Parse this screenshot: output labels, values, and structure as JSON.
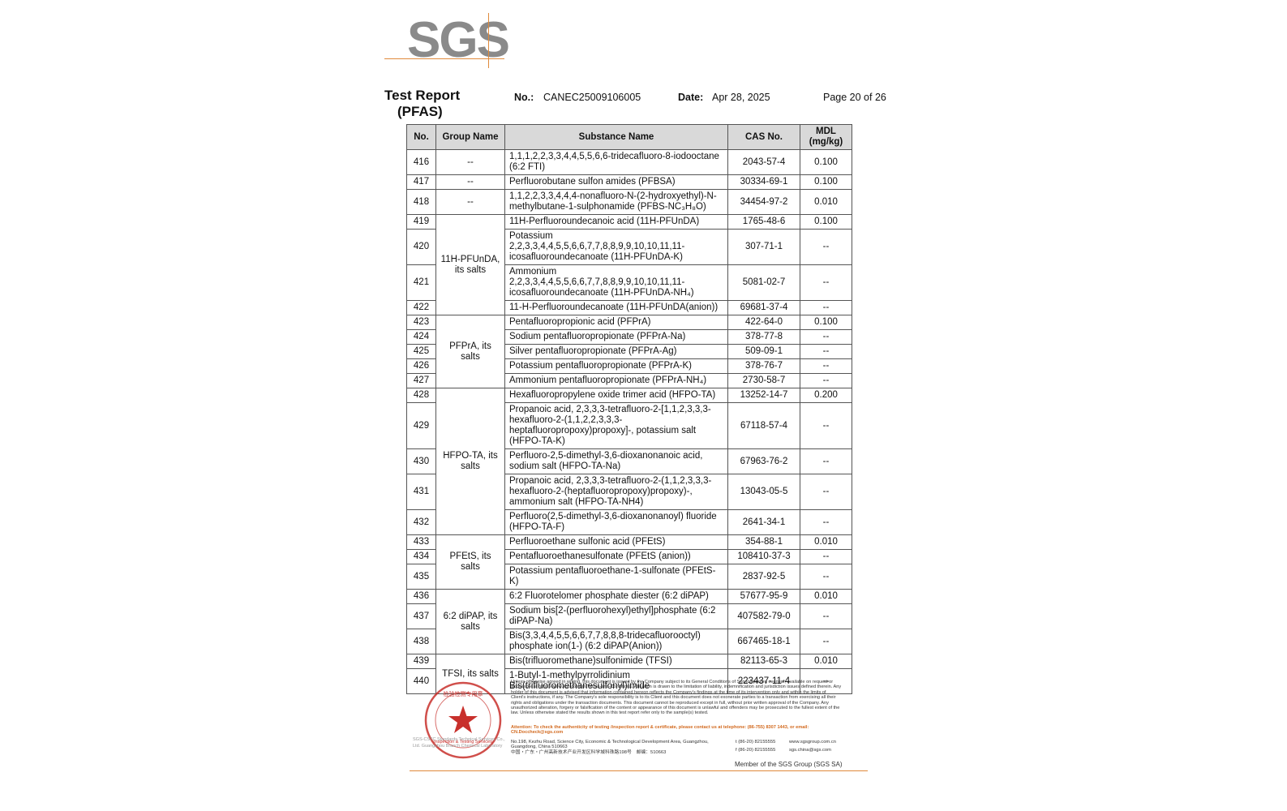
{
  "logo": "SGS",
  "header": {
    "title": "Test Report",
    "subtitle": "(PFAS)",
    "no_label": "No.:",
    "no": "CANEC25009106005",
    "date_label": "Date:",
    "date": "Apr 28, 2025",
    "page": "Page 20 of 26"
  },
  "table": {
    "columns": [
      "No.",
      "Group Name",
      "Substance Name",
      "CAS No.",
      "MDL (mg/kg)"
    ],
    "groups": [
      {
        "name": "--",
        "rows": [
          [
            "416",
            "1,1,1,2,2,3,3,4,4,5,5,6,6-tridecafluoro-8-iodooctane (6:2 FTI)",
            "2043-57-4",
            "0.100"
          ]
        ]
      },
      {
        "name": "--",
        "rows": [
          [
            "417",
            "Perfluorobutane sulfon amides (PFBSA)",
            "30334-69-1",
            "0.100"
          ]
        ]
      },
      {
        "name": "--",
        "rows": [
          [
            "418",
            "1,1,2,2,3,3,4,4,4-nonafluoro-N-(2-hydroxyethyl)-N-methylbutane-1-sulphonamide (PFBS-NC₃H₈O)",
            "34454-97-2",
            "0.010"
          ]
        ]
      },
      {
        "name": "11H-PFUnDA, its salts",
        "rows": [
          [
            "419",
            "11H-Perfluoroundecanoic acid (11H-PFUnDA)",
            "1765-48-6",
            "0.100"
          ],
          [
            "420",
            "Potassium 2,2,3,3,4,4,5,5,6,6,7,7,8,8,9,9,10,10,11,11-icosafluoroundecanoate (11H-PFUnDA-K)",
            "307-71-1",
            "--"
          ],
          [
            "421",
            "Ammonium 2,2,3,3,4,4,5,5,6,6,7,7,8,8,9,9,10,10,11,11-icosafluoroundecanoate (11H-PFUnDA-NH₄)",
            "5081-02-7",
            "--"
          ],
          [
            "422",
            "11-H-Perfluoroundecanoate (11H-PFUnDA(anion))",
            "69681-37-4",
            "--"
          ]
        ]
      },
      {
        "name": "PFPrA, its salts",
        "rows": [
          [
            "423",
            "Pentafluoropropionic acid (PFPrA)",
            "422-64-0",
            "0.100"
          ],
          [
            "424",
            "Sodium pentafluoropropionate (PFPrA-Na)",
            "378-77-8",
            "--"
          ],
          [
            "425",
            "Silver pentafluoropropionate (PFPrA-Ag)",
            "509-09-1",
            "--"
          ],
          [
            "426",
            "Potassium pentafluoropropionate (PFPrA-K)",
            "378-76-7",
            "--"
          ],
          [
            "427",
            "Ammonium pentafluoropropionate (PFPrA-NH₄)",
            "2730-58-7",
            "--"
          ]
        ]
      },
      {
        "name": "HFPO-TA, its salts",
        "rows": [
          [
            "428",
            "Hexafluoropropylene oxide trimer acid (HFPO-TA)",
            "13252-14-7",
            "0.200"
          ],
          [
            "429",
            "Propanoic acid, 2,3,3,3-tetrafluoro-2-[1,1,2,3,3,3-hexafluoro-2-(1,1,2,2,3,3,3-heptafluoropropoxy)propoxy]-, potassium salt (HFPO-TA-K)",
            "67118-57-4",
            "--"
          ],
          [
            "430",
            "Perfluoro-2,5-dimethyl-3,6-dioxanonanoic acid, sodium salt (HFPO-TA-Na)",
            "67963-76-2",
            "--"
          ],
          [
            "431",
            "Propanoic acid, 2,3,3,3-tetrafluoro-2-(1,1,2,3,3,3-hexafluoro-2-(heptafluoropropoxy)propoxy)-, ammonium salt (HFPO-TA-NH4)",
            "13043-05-5",
            "--"
          ],
          [
            "432",
            "Perfluoro(2,5-dimethyl-3,6-dioxanonanoyl) fluoride (HFPO-TA-F)",
            "2641-34-1",
            "--"
          ]
        ]
      },
      {
        "name": "PFEtS, its salts",
        "rows": [
          [
            "433",
            "Perfluoroethane sulfonic acid (PFEtS)",
            "354-88-1",
            "0.010"
          ],
          [
            "434",
            "Pentafluoroethanesulfonate (PFEtS (anion))",
            "108410-37-3",
            "--"
          ],
          [
            "435",
            "Potassium pentafluoroethane-1-sulfonate (PFEtS-K)",
            "2837-92-5",
            "--"
          ]
        ]
      },
      {
        "name": "6:2 diPAP, its salts",
        "rows": [
          [
            "436",
            "6:2 Fluorotelomer phosphate diester (6:2 diPAP)",
            "57677-95-9",
            "0.010"
          ],
          [
            "437",
            "Sodium bis[2-(perfluorohexyl)ethyl]phosphate (6:2 diPAP-Na)",
            "407582-79-0",
            "--"
          ],
          [
            "438",
            "Bis(3,3,4,4,5,5,6,6,7,7,8,8,8-tridecafluorooctyl) phosphate ion(1-) (6:2 diPAP(Anion))",
            "667465-18-1",
            "--"
          ]
        ]
      },
      {
        "name": "TFSI, its salts",
        "rows": [
          [
            "439",
            "Bis(trifluoromethane)sulfonimide (TFSI)",
            "82113-65-3",
            "0.010"
          ],
          [
            "440",
            "1-Butyl-1-methylpyrrolidinium Bis(trifluoromethanesulfonyl)imide",
            "223437-11-4",
            "--"
          ]
        ]
      }
    ]
  },
  "footer": {
    "stamp_top": "检验检测专用章",
    "stamp_bottom": "Inspection & Testing Services",
    "lab": "SGS-CSTC Standards Technical Services Co., Ltd. Guangzhou Branch Chemical Laboratory",
    "disclaimer": "Unless otherwise agreed in writing, this document is issued by the Company subject to its General Conditions of Service printed overleaf, available on request or accessible at https://www.sgs.com/en/Terms-and-Conditions. Attention is drawn to the limitation of liability, indemnification and jurisdiction issues defined therein. Any holder of this document is advised that information contained hereon reflects the Company's findings at the time of its intervention only and within the limits of Client's instructions, if any. The Company's sole responsibility is to its Client and this document does not exonerate parties to a transaction from exercising all their rights and obligations under the transaction documents. This document cannot be reproduced except in full, without prior written approval of the Company. Any unauthorized alteration, forgery or falsification of the content or appearance of this document is unlawful and offenders may be prosecuted to the fullest extent of the law. Unless otherwise stated the results shown in this test report refer only to the sample(s) tested.",
    "attention": "Attention: To check the authenticity of testing /inspection report & certificate, please contact us at telephone: (86-755) 8307 1443, or email: CN.Doccheck@sgs.com",
    "address_en": "No.198, Kezhu Road, Science City, Economic & Technological Development Area, Guangzhou, Guangdong, China 510663",
    "address_cn": "中国・广东・广州高新技术产业开发区科学城科珠路198号　邮编：510663",
    "phone": "t (86-20) 82155555",
    "fax": "f (86-20) 82155555",
    "web": "www.sgsgroup.com.cn",
    "email": "sgs.china@sgs.com",
    "member": "Member of the SGS Group (SGS SA)"
  }
}
